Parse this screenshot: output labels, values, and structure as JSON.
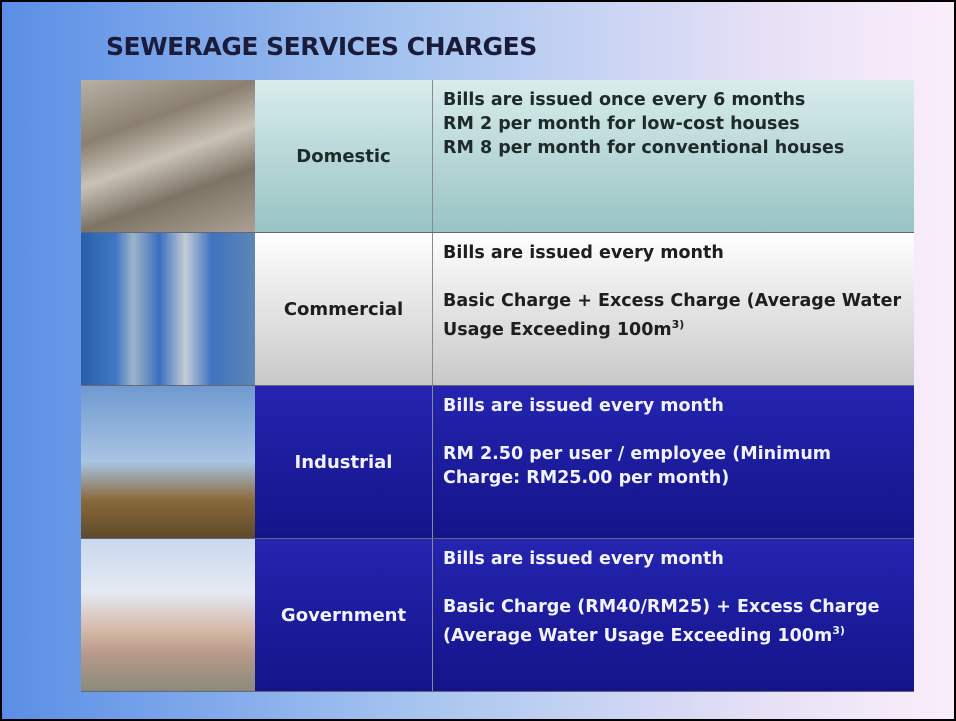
{
  "title": "SEWERAGE SERVICES CHARGES",
  "rows": [
    {
      "category": "Domestic",
      "paragraphs": [
        "Bills are issued once every 6 months",
        "RM 2 per month for low-cost houses",
        "RM 8 per month for conventional houses"
      ]
    },
    {
      "category": "Commercial",
      "paragraphs": [
        "Bills are issued every month",
        "Basic Charge + Excess Charge (Average Water Usage Exceeding 100m"
      ],
      "superscript": "3)"
    },
    {
      "category": "Industrial",
      "paragraphs": [
        "Bills are issued every month",
        "RM 2.50 per user / employee (Minimum Charge: RM25.00 per month)"
      ]
    },
    {
      "category": "Government",
      "paragraphs": [
        "Bills are issued every month",
        "Basic Charge (RM40/RM25) + Excess Charge (Average Water Usage Exceeding 100m"
      ],
      "superscript": "3)"
    }
  ]
}
